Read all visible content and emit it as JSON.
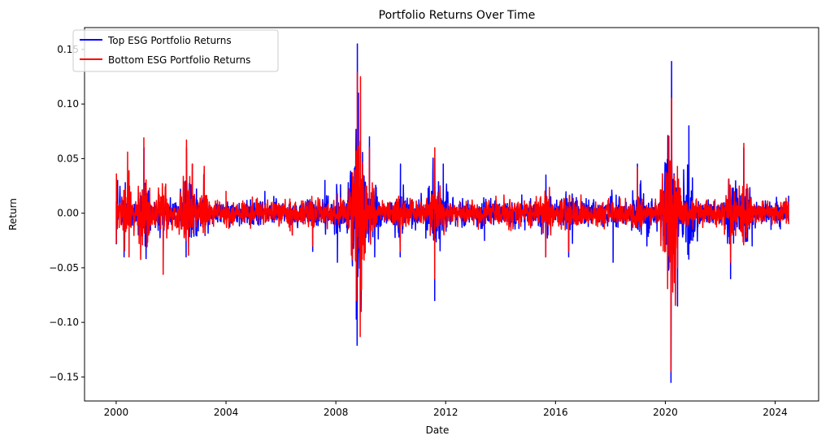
{
  "chart_data": {
    "type": "line",
    "title": "Portfolio Returns Over Time",
    "xlabel": "Date",
    "ylabel": "Return",
    "xlim": [
      "1998-11-06",
      "2025-08-01"
    ],
    "ylim": [
      -0.172,
      0.17
    ],
    "x_ticks": [
      "2000",
      "2004",
      "2008",
      "2012",
      "2016",
      "2020",
      "2024"
    ],
    "y_ticks": [
      "0.15",
      "0.10",
      "0.05",
      "0.00",
      "−0.05",
      "−0.10",
      "−0.15"
    ],
    "y_tick_values": [
      0.15,
      0.1,
      0.05,
      0.0,
      -0.05,
      -0.1,
      -0.15
    ],
    "legend_position": "top-left",
    "grid": false,
    "series": [
      {
        "name": "Top ESG Portfolio Returns",
        "color": "#0000ff",
        "points": [
          [
            "2000-01-03",
            -0.028
          ],
          [
            "2000-01-20",
            0.03
          ],
          [
            "2000-04-15",
            -0.04
          ],
          [
            "2000-05-01",
            0.028
          ],
          [
            "2001-01-05",
            0.06
          ],
          [
            "2001-01-20",
            -0.03
          ],
          [
            "2001-09-17",
            -0.05
          ],
          [
            "2002-07-19",
            -0.04
          ],
          [
            "2002-07-24",
            0.06
          ],
          [
            "2002-10-10",
            0.045
          ],
          [
            "2003-03-17",
            0.04
          ],
          [
            "2005-06-01",
            0.02
          ],
          [
            "2006-06-01",
            -0.02
          ],
          [
            "2007-02-27",
            -0.035
          ],
          [
            "2007-08-09",
            0.03
          ],
          [
            "2008-01-22",
            -0.045
          ],
          [
            "2008-09-29",
            -0.097
          ],
          [
            "2008-10-10",
            -0.121
          ],
          [
            "2008-10-13",
            0.155
          ],
          [
            "2008-10-28",
            0.11
          ],
          [
            "2008-12-01",
            -0.09
          ],
          [
            "2009-03-23",
            0.07
          ],
          [
            "2009-06-01",
            -0.04
          ],
          [
            "2010-05-06",
            -0.04
          ],
          [
            "2010-05-10",
            0.045
          ],
          [
            "2011-08-08",
            -0.08
          ],
          [
            "2011-08-09",
            0.05
          ],
          [
            "2011-11-30",
            0.045
          ],
          [
            "2013-06-01",
            -0.025
          ],
          [
            "2015-08-24",
            -0.04
          ],
          [
            "2015-08-26",
            0.035
          ],
          [
            "2016-06-24",
            -0.04
          ],
          [
            "2018-02-05",
            -0.045
          ],
          [
            "2018-12-26",
            0.045
          ],
          [
            "2019-05-01",
            -0.03
          ],
          [
            "2020-03-16",
            -0.155
          ],
          [
            "2020-03-24",
            0.139
          ],
          [
            "2020-06-11",
            -0.085
          ],
          [
            "2020-11-09",
            0.08
          ],
          [
            "2022-05-18",
            -0.06
          ],
          [
            "2022-11-10",
            0.06
          ],
          [
            "2023-03-01",
            -0.03
          ],
          [
            "2024-06-28",
            0.016
          ]
        ]
      },
      {
        "name": "Bottom ESG Portfolio Returns",
        "color": "#ff0000",
        "points": [
          [
            "2000-01-03",
            -0.027
          ],
          [
            "2000-01-04",
            0.036
          ],
          [
            "2000-06-01",
            0.056
          ],
          [
            "2000-06-20",
            -0.04
          ],
          [
            "2001-01-03",
            0.069
          ],
          [
            "2001-09-17",
            -0.056
          ],
          [
            "2002-07-24",
            0.067
          ],
          [
            "2002-10-10",
            0.045
          ],
          [
            "2003-03-17",
            0.043
          ],
          [
            "2004-01-01",
            0.02
          ],
          [
            "2006-06-01",
            -0.02
          ],
          [
            "2007-02-27",
            -0.03
          ],
          [
            "2008-09-29",
            -0.08
          ],
          [
            "2008-10-13",
            0.129
          ],
          [
            "2008-11-20",
            -0.113
          ],
          [
            "2008-11-24",
            0.125
          ],
          [
            "2009-03-23",
            0.06
          ],
          [
            "2010-05-06",
            -0.035
          ],
          [
            "2011-08-08",
            -0.06
          ],
          [
            "2011-08-09",
            0.06
          ],
          [
            "2015-08-24",
            -0.04
          ],
          [
            "2016-06-24",
            -0.035
          ],
          [
            "2018-12-26",
            0.042
          ],
          [
            "2020-03-16",
            -0.145
          ],
          [
            "2020-03-24",
            0.105
          ],
          [
            "2020-06-11",
            -0.05
          ],
          [
            "2022-05-18",
            -0.045
          ],
          [
            "2022-11-10",
            0.064
          ],
          [
            "2024-06-28",
            -0.01
          ]
        ]
      }
    ]
  }
}
